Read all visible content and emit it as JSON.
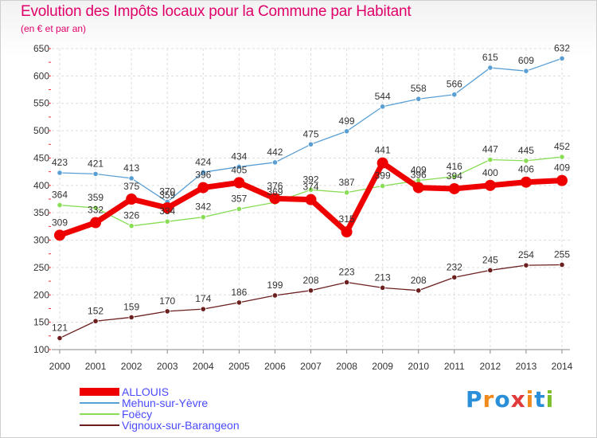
{
  "title": "Evolution des Impôts locaux pour la Commune par Habitant",
  "subtitle": "(en € et par an)",
  "logo": {
    "text": "Proxiti",
    "colors": [
      "#2a8fd8",
      "#f08a1c",
      "#e03a3a",
      "#7bbf2a"
    ]
  },
  "chart_data": {
    "type": "line",
    "x": [
      2000,
      2001,
      2002,
      2003,
      2004,
      2005,
      2006,
      2007,
      2008,
      2009,
      2010,
      2011,
      2012,
      2013,
      2014
    ],
    "ylim": [
      100,
      650
    ],
    "yticks": [
      100,
      150,
      200,
      250,
      300,
      350,
      400,
      450,
      500,
      550,
      600,
      650
    ],
    "grid": true,
    "legend_position": "bottom-left",
    "series": [
      {
        "name": "Vignoux-sur-Barangeon",
        "color": "#6b1f1f",
        "values": [
          121,
          152,
          159,
          170,
          174,
          186,
          199,
          208,
          223,
          213,
          208,
          232,
          245,
          254,
          255
        ]
      },
      {
        "name": "Foëcy",
        "color": "#88dd55",
        "values": [
          364,
          359,
          326,
          334,
          342,
          357,
          369,
          392,
          387,
          399,
          409,
          416,
          447,
          445,
          452
        ]
      },
      {
        "name": "Mehun-sur-Yèvre",
        "color": "#5a9fd4",
        "values": [
          423,
          421,
          413,
          370,
          424,
          434,
          442,
          475,
          499,
          544,
          558,
          566,
          615,
          609,
          632
        ]
      },
      {
        "name": "ALLOUIS",
        "color": "#ee0000",
        "values": [
          309,
          332,
          375,
          359,
          396,
          405,
          376,
          374,
          315,
          441,
          396,
          394,
          400,
          406,
          409
        ]
      }
    ],
    "legend_order": [
      "ALLOUIS",
      "Mehun-sur-Yèvre",
      "Foëcy",
      "Vignoux-sur-Barangeon"
    ]
  }
}
